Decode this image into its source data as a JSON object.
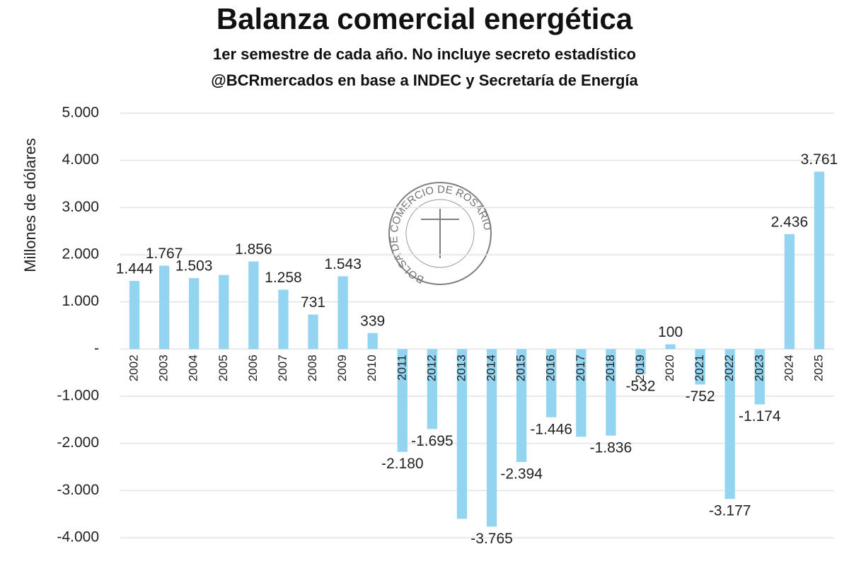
{
  "chart_data": {
    "type": "bar",
    "title": "Balanza comercial energética",
    "subtitle": [
      "1er semestre de cada año. No incluye secreto estadístico",
      "@BCRmercados en base a INDEC y Secretaría de Energía"
    ],
    "y_label": "Millones de dólares",
    "watermark": "BOLSA DE COMERCIO DE ROSARIO",
    "categories": [
      "2002",
      "2003",
      "2004",
      "2005",
      "2006",
      "2007",
      "2008",
      "2009",
      "2010",
      "2011",
      "2012",
      "2013",
      "2014",
      "2015",
      "2016",
      "2017",
      "2018",
      "2019",
      "2020",
      "2021",
      "2022",
      "2023",
      "2024",
      "2025"
    ],
    "values": [
      1444,
      1767,
      1503,
      1570,
      1856,
      1258,
      731,
      1543,
      339,
      -2180,
      -1695,
      -3600,
      -3765,
      -2394,
      -1446,
      -1860,
      -1836,
      -532,
      100,
      -752,
      -3177,
      -1174,
      2436,
      3761
    ],
    "value_labels": [
      "1.444",
      "1.767",
      "1.503",
      null,
      "1.856",
      "1.258",
      "731",
      "1.543",
      "339",
      "-2.180",
      "-1.695",
      null,
      "-3.765",
      "-2.394",
      "-1.446",
      null,
      "-1.836",
      "-532",
      "100",
      "-752",
      "-3.177",
      "-1.174",
      "2.436",
      "3.761"
    ],
    "color": "#93d4f0",
    "ylim": [
      -4450,
      5150
    ],
    "yticks": [
      {
        "value": 5000,
        "label": "5.000"
      },
      {
        "value": 4000,
        "label": "4.000"
      },
      {
        "value": 3000,
        "label": "3.000"
      },
      {
        "value": 2000,
        "label": "2.000"
      },
      {
        "value": 1000,
        "label": "1.000"
      },
      {
        "value": 0,
        "label": "-"
      },
      {
        "value": -1000,
        "label": "-1.000"
      },
      {
        "value": -2000,
        "label": "-2.000"
      },
      {
        "value": -3000,
        "label": "-3.000"
      },
      {
        "value": -4000,
        "label": "-4.000"
      }
    ],
    "grid": true
  }
}
